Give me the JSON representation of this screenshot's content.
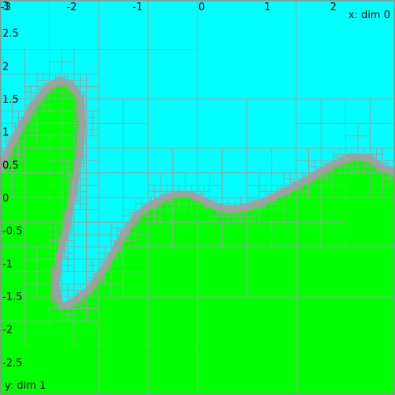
{
  "chart_data": {
    "type": "area",
    "xlim": [
      -3,
      3
    ],
    "ylim": [
      -3,
      3
    ],
    "xlabel": "x: dim 0",
    "ylabel": "y: dim 1",
    "x_ticks": [
      {
        "value": -3,
        "label": "-3"
      },
      {
        "value": -2,
        "label": "-2"
      },
      {
        "value": -1,
        "label": "-1"
      },
      {
        "value": 0,
        "label": "0"
      },
      {
        "value": 1,
        "label": "1"
      },
      {
        "value": 2,
        "label": "2"
      }
    ],
    "y_ticks": [
      {
        "value": 3,
        "label": "3"
      },
      {
        "value": 2.5,
        "label": "2.5"
      },
      {
        "value": 2,
        "label": "2"
      },
      {
        "value": 1.5,
        "label": "1.5"
      },
      {
        "value": 1,
        "label": "1"
      },
      {
        "value": 0.5,
        "label": "0.5"
      },
      {
        "value": 0,
        "label": "0"
      },
      {
        "value": -0.5,
        "label": "-0.5"
      },
      {
        "value": -1,
        "label": "-1"
      },
      {
        "value": -1.5,
        "label": "-1.5"
      },
      {
        "value": -2,
        "label": "-2"
      },
      {
        "value": -2.5,
        "label": "-2.5"
      }
    ],
    "grid": true,
    "regions": {
      "upper_color": "#00ffff",
      "lower_color": "#00ff00",
      "boundary_color": "#a0a0a0",
      "cell_border_color": "#a0a0a0"
    },
    "boundary_curve": [
      [
        -3.0,
        0.45
      ],
      [
        -2.75,
        0.95
      ],
      [
        -2.5,
        1.4
      ],
      [
        -2.25,
        1.7
      ],
      [
        -2.1,
        1.77
      ],
      [
        -1.92,
        1.72
      ],
      [
        -1.78,
        1.5
      ],
      [
        -1.75,
        1.1
      ],
      [
        -1.8,
        0.6
      ],
      [
        -1.9,
        0.0
      ],
      [
        -2.0,
        -0.5
      ],
      [
        -2.1,
        -0.9
      ],
      [
        -2.15,
        -1.3
      ],
      [
        -2.12,
        -1.55
      ],
      [
        -2.05,
        -1.65
      ],
      [
        -1.9,
        -1.6
      ],
      [
        -1.65,
        -1.4
      ],
      [
        -1.4,
        -1.05
      ],
      [
        -1.15,
        -0.6
      ],
      [
        -0.9,
        -0.25
      ],
      [
        -0.6,
        -0.05
      ],
      [
        -0.35,
        0.05
      ],
      [
        -0.1,
        0.05
      ],
      [
        0.1,
        -0.05
      ],
      [
        0.3,
        -0.15
      ],
      [
        0.5,
        -0.18
      ],
      [
        0.75,
        -0.15
      ],
      [
        1.0,
        -0.07
      ],
      [
        1.25,
        0.05
      ],
      [
        1.5,
        0.18
      ],
      [
        1.8,
        0.35
      ],
      [
        2.1,
        0.52
      ],
      [
        2.35,
        0.62
      ],
      [
        2.6,
        0.6
      ],
      [
        2.8,
        0.45
      ],
      [
        3.0,
        0.38
      ]
    ]
  }
}
